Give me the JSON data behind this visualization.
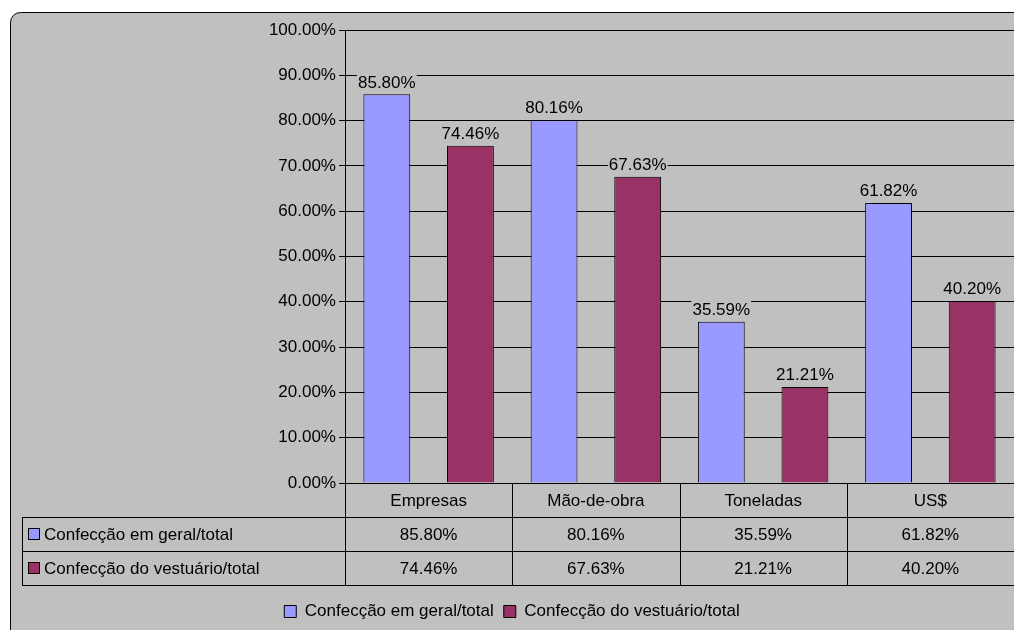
{
  "chart_data": {
    "type": "bar",
    "categories": [
      "Empresas",
      "Mão-de-obra",
      "Toneladas",
      "US$"
    ],
    "series": [
      {
        "name": "Confecção em geral/total",
        "color": "#9999ff",
        "values": [
          85.8,
          80.16,
          35.59,
          61.82
        ],
        "value_labels": [
          "85.80%",
          "80.16%",
          "35.59%",
          "61.82%"
        ]
      },
      {
        "name": "Confecção do vestuário/total",
        "color": "#993366",
        "values": [
          74.46,
          67.63,
          21.21,
          40.2
        ],
        "value_labels": [
          "74.46%",
          "67.63%",
          "21.21%",
          "40.20%"
        ]
      }
    ],
    "ylim": [
      0,
      100
    ],
    "yticks": [
      {
        "value": 0,
        "label": "0.00%"
      },
      {
        "value": 10,
        "label": "10.00%"
      },
      {
        "value": 20,
        "label": "20.00%"
      },
      {
        "value": 30,
        "label": "30.00%"
      },
      {
        "value": 40,
        "label": "40.00%"
      },
      {
        "value": 50,
        "label": "50.00%"
      },
      {
        "value": 60,
        "label": "60.00%"
      },
      {
        "value": 70,
        "label": "70.00%"
      },
      {
        "value": 80,
        "label": "80.00%"
      },
      {
        "value": 90,
        "label": "90.00%"
      },
      {
        "value": 100,
        "label": "100.00%"
      }
    ],
    "grid": "y",
    "legend": "bottom"
  }
}
